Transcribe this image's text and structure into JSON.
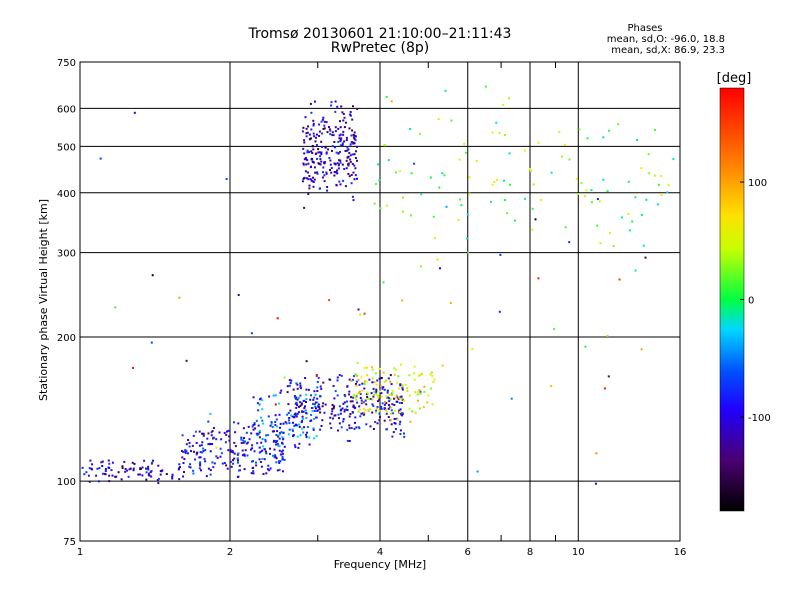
{
  "header": {
    "title_line1": "Tromsø 20130601 21:10:00–21:11:43",
    "title_line2": "RwPretec (8p)",
    "stats_title": "Phases",
    "stats_o": "mean, sd,O: -96.0, 18.8",
    "stats_x": "mean, sd,X: 86.9, 23.3"
  },
  "chart_data": {
    "type": "scatter",
    "title": "Tromsø 20130601 21:10:00–21:11:43",
    "subtitle": "RwPretec (8p)",
    "xlabel": "Frequency [MHz]",
    "ylabel": "Stationary phase Virtual Height [km]",
    "x_scale": "log",
    "y_scale": "log",
    "xlim": [
      1,
      16
    ],
    "ylim": [
      75,
      750
    ],
    "x_ticks": [
      1,
      2,
      4,
      6,
      8,
      10,
      16
    ],
    "y_ticks": [
      75,
      100,
      200,
      300,
      400,
      500,
      600,
      750
    ],
    "grid": true,
    "colorbar": {
      "label": "[deg]",
      "range": [
        -180,
        180
      ],
      "ticks": [
        100,
        0,
        -100
      ]
    },
    "clusters": [
      {
        "name": "",
        "x_range": [
          1.0,
          1.6
        ],
        "y_range": [
          98,
          112
        ],
        "phase": -110,
        "count": 90
      },
      {
        "name": "",
        "x_range": [
          1.6,
          2.6
        ],
        "y_range": [
          100,
          135
        ],
        "phase": -95,
        "count": 220
      },
      {
        "name": "",
        "x_range": [
          2.2,
          3.0
        ],
        "y_range": [
          110,
          160
        ],
        "phase": -60,
        "count": 110
      },
      {
        "name": "",
        "x_range": [
          2.6,
          4.5
        ],
        "y_range": [
          120,
          170
        ],
        "phase": -100,
        "count": 300
      },
      {
        "name": "",
        "x_range": [
          3.5,
          5.2
        ],
        "y_range": [
          130,
          180
        ],
        "phase": 60,
        "count": 120
      },
      {
        "name": "",
        "x_range": [
          2.8,
          3.6
        ],
        "y_range": [
          380,
          640
        ],
        "phase": -110,
        "count": 260
      },
      {
        "name": "",
        "x_range": [
          3.8,
          16.0
        ],
        "y_range": [
          260,
          700
        ],
        "phase": 20,
        "count": 110
      },
      {
        "name": "",
        "x_range": [
          1.0,
          16.0
        ],
        "y_range": [
          76,
          750
        ],
        "phase": 0,
        "count": 60
      }
    ]
  }
}
